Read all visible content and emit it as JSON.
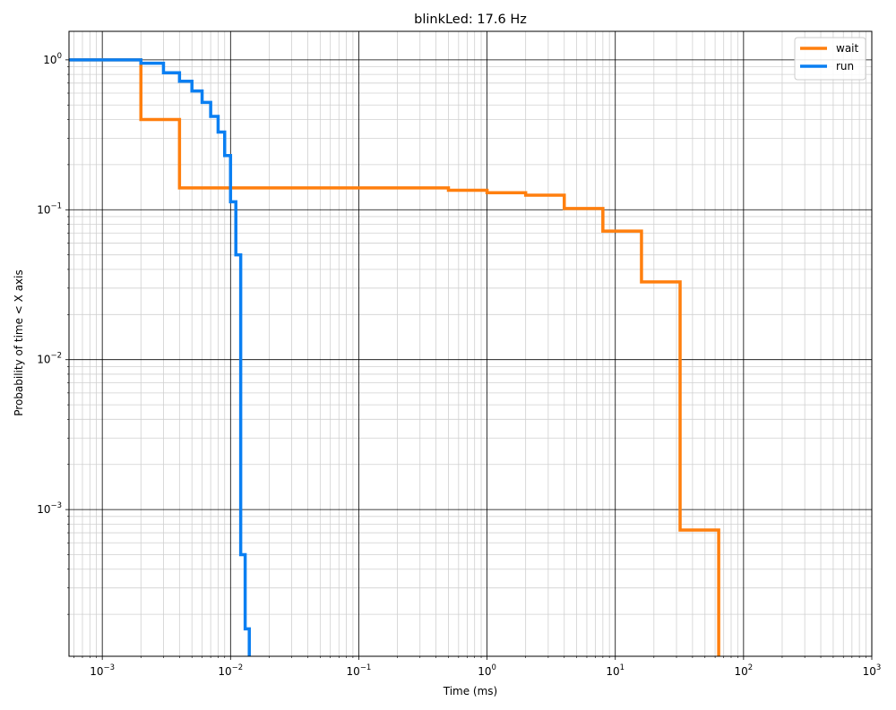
{
  "chart_data": {
    "type": "line",
    "title": "blinkLed: 17.6 Hz",
    "xlabel": "Time (ms)",
    "ylabel": "Probability of time < X axis",
    "xscale": "log",
    "yscale": "log",
    "xlim": [
      0.00055,
      1000
    ],
    "ylim": [
      0.000105,
      1.55
    ],
    "grid": true,
    "legend_position": "top-right",
    "x_ticks": [
      {
        "base": "10",
        "exp": "−3",
        "value": 0.001
      },
      {
        "base": "10",
        "exp": "−2",
        "value": 0.01
      },
      {
        "base": "10",
        "exp": "−1",
        "value": 0.1
      },
      {
        "base": "10",
        "exp": "0",
        "value": 1
      },
      {
        "base": "10",
        "exp": "1",
        "value": 10
      },
      {
        "base": "10",
        "exp": "2",
        "value": 100
      },
      {
        "base": "10",
        "exp": "3",
        "value": 1000
      }
    ],
    "y_ticks": [
      {
        "base": "10",
        "exp": "0",
        "value": 1
      },
      {
        "base": "10",
        "exp": "−1",
        "value": 0.1
      },
      {
        "base": "10",
        "exp": "−2",
        "value": 0.01
      },
      {
        "base": "10",
        "exp": "−3",
        "value": 0.001
      }
    ],
    "series": [
      {
        "name": "wait",
        "color": "#ff7f0e",
        "x": [
          0.00055,
          0.002,
          0.002,
          0.004,
          0.004,
          0.5,
          0.5,
          1.0,
          1.0,
          2.0,
          2.0,
          4.0,
          4.0,
          8.0,
          8.0,
          16.0,
          16.0,
          32.0,
          32.0,
          64.0,
          64.0
        ],
        "y": [
          1.0,
          1.0,
          0.4,
          0.4,
          0.14,
          0.14,
          0.135,
          0.135,
          0.13,
          0.13,
          0.125,
          0.125,
          0.102,
          0.102,
          0.072,
          0.072,
          0.033,
          0.033,
          0.00073,
          0.00073,
          0.000105
        ]
      },
      {
        "name": "run",
        "color": "#0a7ff2",
        "x": [
          0.00055,
          0.002,
          0.002,
          0.003,
          0.003,
          0.004,
          0.004,
          0.005,
          0.005,
          0.006,
          0.006,
          0.007,
          0.007,
          0.008,
          0.008,
          0.009,
          0.009,
          0.01,
          0.01,
          0.011,
          0.011,
          0.012,
          0.012,
          0.013,
          0.013,
          0.014,
          0.014
        ],
        "y": [
          1.0,
          1.0,
          0.95,
          0.95,
          0.82,
          0.82,
          0.72,
          0.72,
          0.62,
          0.62,
          0.52,
          0.52,
          0.42,
          0.42,
          0.33,
          0.33,
          0.23,
          0.23,
          0.113,
          0.113,
          0.05,
          0.05,
          0.0005,
          0.0005,
          0.00016,
          0.00016,
          0.000105
        ]
      }
    ]
  }
}
